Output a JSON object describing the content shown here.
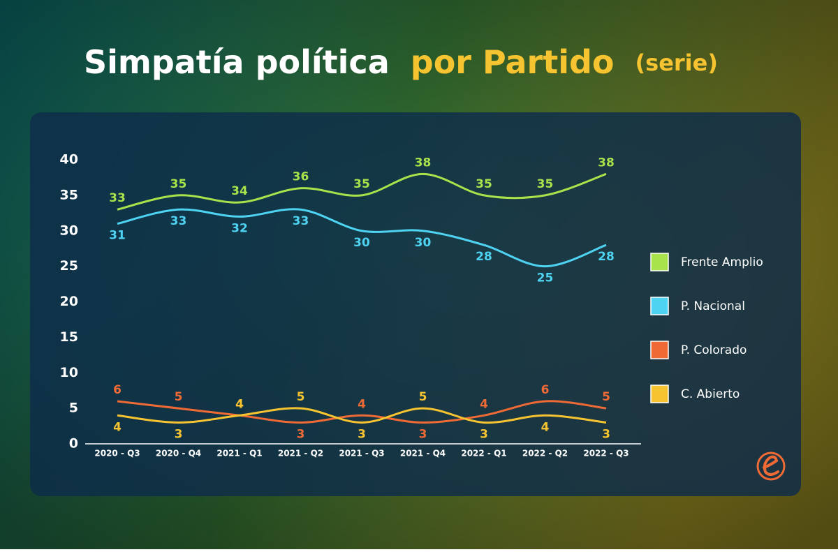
{
  "chart_data": {
    "type": "line",
    "title": "Simpatía política",
    "title_highlight": "por Partido",
    "subtitle": "(serie)",
    "categories": [
      "2020 - Q3",
      "2020 - Q4",
      "2021 - Q1",
      "2021 - Q2",
      "2021 - Q3",
      "2021 - Q4",
      "2022 - Q1",
      "2022 - Q2",
      "2022 - Q3"
    ],
    "series": [
      {
        "name": "Frente Amplio",
        "color": "#a9e34b",
        "values": [
          33,
          35,
          34,
          36,
          35,
          38,
          35,
          35,
          38
        ]
      },
      {
        "name": "P. Nacional",
        "color": "#4fd3f2",
        "values": [
          31,
          33,
          32,
          33,
          30,
          30,
          28,
          25,
          28
        ]
      },
      {
        "name": "P. Colorado",
        "color": "#f06a35",
        "values": [
          6,
          5,
          4,
          3,
          4,
          3,
          4,
          6,
          5
        ]
      },
      {
        "name": "C. Abierto",
        "color": "#f7c431",
        "values": [
          4,
          3,
          4,
          5,
          3,
          5,
          3,
          4,
          3
        ]
      }
    ],
    "ylim": [
      0,
      40
    ],
    "yticks": [
      0,
      5,
      10,
      15,
      20,
      25,
      30,
      35,
      40
    ],
    "legend": "right"
  }
}
